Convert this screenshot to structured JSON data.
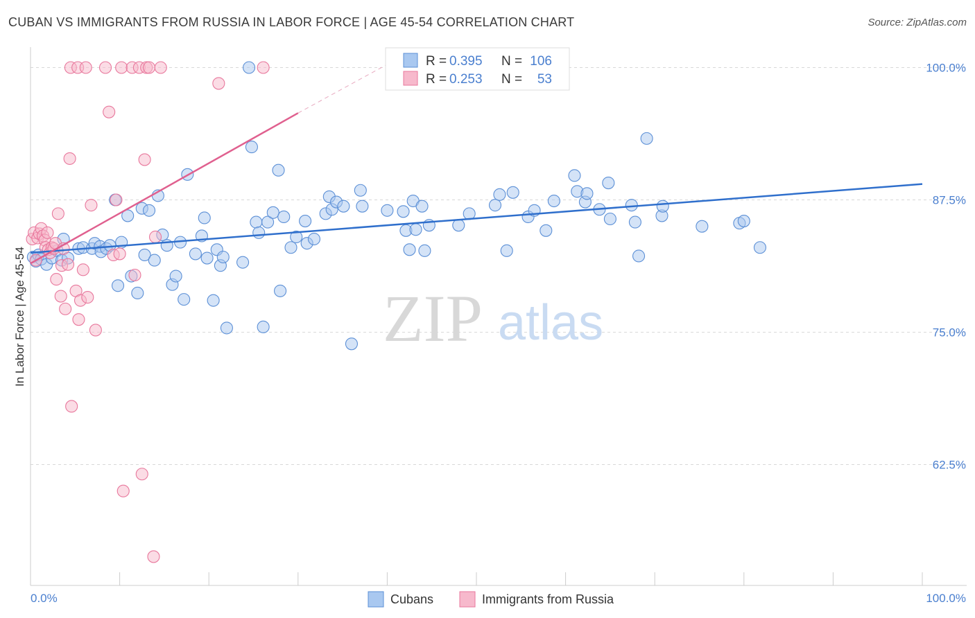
{
  "header": {
    "title": "CUBAN VS IMMIGRANTS FROM RUSSIA IN LABOR FORCE | AGE 45-54 CORRELATION CHART",
    "source": "Source: ZipAtlas.com"
  },
  "watermark": {
    "zip": "ZIP",
    "atlas": "atlas"
  },
  "colors": {
    "blue_fill": "#a9c8f0",
    "blue_stroke": "#5b8fd6",
    "blue_line": "#2f6fcc",
    "pink_fill": "#f7b9cc",
    "pink_stroke": "#e8779c",
    "pink_line": "#e0608f",
    "grid": "#d8d8d8",
    "axis_text": "#4a7fcf"
  },
  "legend": {
    "rows": [
      {
        "r_label": "R =",
        "r_value": "0.395",
        "n_label": "N =",
        "n_value": "106"
      },
      {
        "r_label": "R =",
        "r_value": "0.253",
        "n_label": "N =",
        "n_value": "53"
      }
    ]
  },
  "chart_data": {
    "type": "scatter",
    "title": "CUBAN VS IMMIGRANTS FROM RUSSIA IN LABOR FORCE | AGE 45-54 CORRELATION CHART",
    "xlabel": "",
    "ylabel": "In Labor Force | Age 45-54",
    "xlim": [
      0,
      100
    ],
    "ylim": [
      50,
      102
    ],
    "x_tick_labels": [
      "0.0%",
      "100.0%"
    ],
    "y_ticks": [
      62.5,
      75.0,
      87.5,
      100.0
    ],
    "y_tick_labels": [
      "62.5%",
      "75.0%",
      "87.5%",
      "100.0%"
    ],
    "grid": true,
    "legend_position": "bottom",
    "series": [
      {
        "name": "Cubans",
        "r": 0.395,
        "n": 106,
        "trend": {
          "x": [
            0,
            100
          ],
          "y": [
            82.5,
            89.0
          ]
        },
        "points": [
          [
            0.3,
            82.1
          ],
          [
            0.6,
            81.7
          ],
          [
            0.9,
            82.3
          ],
          [
            1.2,
            81.9
          ],
          [
            1.8,
            81.4
          ],
          [
            2.4,
            82.0
          ],
          [
            3.0,
            82.7
          ],
          [
            3.5,
            81.8
          ],
          [
            3.7,
            83.8
          ],
          [
            4.2,
            82.0
          ],
          [
            5.4,
            82.9
          ],
          [
            5.9,
            83.0
          ],
          [
            6.9,
            82.9
          ],
          [
            7.2,
            83.4
          ],
          [
            7.8,
            83.1
          ],
          [
            7.9,
            82.6
          ],
          [
            8.5,
            82.9
          ],
          [
            8.9,
            83.2
          ],
          [
            9.5,
            87.5
          ],
          [
            9.8,
            79.4
          ],
          [
            10.2,
            83.5
          ],
          [
            10.9,
            86.0
          ],
          [
            11.3,
            80.3
          ],
          [
            12.0,
            78.7
          ],
          [
            12.5,
            86.7
          ],
          [
            12.8,
            82.3
          ],
          [
            13.3,
            86.5
          ],
          [
            13.9,
            81.8
          ],
          [
            14.3,
            87.9
          ],
          [
            14.8,
            84.2
          ],
          [
            15.3,
            83.2
          ],
          [
            15.9,
            79.5
          ],
          [
            16.3,
            80.3
          ],
          [
            16.8,
            83.5
          ],
          [
            17.2,
            78.1
          ],
          [
            17.6,
            89.9
          ],
          [
            18.5,
            82.4
          ],
          [
            19.2,
            84.1
          ],
          [
            19.5,
            85.8
          ],
          [
            19.8,
            82.0
          ],
          [
            20.5,
            78.0
          ],
          [
            20.9,
            82.8
          ],
          [
            21.3,
            81.3
          ],
          [
            21.6,
            82.1
          ],
          [
            22.0,
            75.4
          ],
          [
            23.8,
            81.6
          ],
          [
            24.5,
            100.0
          ],
          [
            24.8,
            92.5
          ],
          [
            25.3,
            85.4
          ],
          [
            25.6,
            84.4
          ],
          [
            26.1,
            75.5
          ],
          [
            26.6,
            85.4
          ],
          [
            27.2,
            86.3
          ],
          [
            27.8,
            90.3
          ],
          [
            28.0,
            78.9
          ],
          [
            28.4,
            85.9
          ],
          [
            29.2,
            83.0
          ],
          [
            29.8,
            84.0
          ],
          [
            30.8,
            85.5
          ],
          [
            31.0,
            83.4
          ],
          [
            31.8,
            83.8
          ],
          [
            33.1,
            86.2
          ],
          [
            33.5,
            87.8
          ],
          [
            33.8,
            86.6
          ],
          [
            34.3,
            87.3
          ],
          [
            35.1,
            86.9
          ],
          [
            36.0,
            73.9
          ],
          [
            37.0,
            88.4
          ],
          [
            37.2,
            86.9
          ],
          [
            40.0,
            86.5
          ],
          [
            41.8,
            86.4
          ],
          [
            42.1,
            84.6
          ],
          [
            42.5,
            82.8
          ],
          [
            42.9,
            87.4
          ],
          [
            43.2,
            84.7
          ],
          [
            43.9,
            86.9
          ],
          [
            44.2,
            82.7
          ],
          [
            44.7,
            85.1
          ],
          [
            48.0,
            85.1
          ],
          [
            49.2,
            86.2
          ],
          [
            52.1,
            87.0
          ],
          [
            52.6,
            88.0
          ],
          [
            53.4,
            82.7
          ],
          [
            54.1,
            88.2
          ],
          [
            55.8,
            85.9
          ],
          [
            56.5,
            86.5
          ],
          [
            57.8,
            84.6
          ],
          [
            58.7,
            87.4
          ],
          [
            61.0,
            89.8
          ],
          [
            61.3,
            88.3
          ],
          [
            62.2,
            87.3
          ],
          [
            62.4,
            88.1
          ],
          [
            63.8,
            86.6
          ],
          [
            64.8,
            89.1
          ],
          [
            65.0,
            85.7
          ],
          [
            67.4,
            87.0
          ],
          [
            67.8,
            85.4
          ],
          [
            68.2,
            82.2
          ],
          [
            69.1,
            93.3
          ],
          [
            70.8,
            86.0
          ],
          [
            70.9,
            86.9
          ],
          [
            75.3,
            85.0
          ],
          [
            79.5,
            85.3
          ],
          [
            80.0,
            85.5
          ],
          [
            81.8,
            83.0
          ]
        ]
      },
      {
        "name": "Immigrants from Russia",
        "r": 0.253,
        "n": 53,
        "trend": {
          "x": [
            0,
            30
          ],
          "y": [
            81.5,
            95.7
          ]
        },
        "trend_dashed": {
          "x": [
            30,
            40
          ],
          "y": [
            95.7,
            100.3
          ]
        },
        "points": [
          [
            0.2,
            83.8
          ],
          [
            0.4,
            84.4
          ],
          [
            0.6,
            81.8
          ],
          [
            0.8,
            83.9
          ],
          [
            1.0,
            84.3
          ],
          [
            1.2,
            84.8
          ],
          [
            1.4,
            84.1
          ],
          [
            1.6,
            83.7
          ],
          [
            1.7,
            83.0
          ],
          [
            1.9,
            84.4
          ],
          [
            2.0,
            82.8
          ],
          [
            2.2,
            82.5
          ],
          [
            2.4,
            83.0
          ],
          [
            2.6,
            82.9
          ],
          [
            2.8,
            83.4
          ],
          [
            2.9,
            80.0
          ],
          [
            3.1,
            86.2
          ],
          [
            3.4,
            78.4
          ],
          [
            3.5,
            81.3
          ],
          [
            3.7,
            82.9
          ],
          [
            3.9,
            77.2
          ],
          [
            4.2,
            81.4
          ],
          [
            4.4,
            91.4
          ],
          [
            4.5,
            100.0
          ],
          [
            4.6,
            68.0
          ],
          [
            5.1,
            78.9
          ],
          [
            5.3,
            100.0
          ],
          [
            5.4,
            76.2
          ],
          [
            5.6,
            78.0
          ],
          [
            5.9,
            80.9
          ],
          [
            6.2,
            100.0
          ],
          [
            6.4,
            78.3
          ],
          [
            6.8,
            87.0
          ],
          [
            7.3,
            75.2
          ],
          [
            8.4,
            100.0
          ],
          [
            8.8,
            95.8
          ],
          [
            9.3,
            82.3
          ],
          [
            9.6,
            87.5
          ],
          [
            10.0,
            82.4
          ],
          [
            10.2,
            100.0
          ],
          [
            10.4,
            60.0
          ],
          [
            11.4,
            100.0
          ],
          [
            11.7,
            80.4
          ],
          [
            12.2,
            100.0
          ],
          [
            12.5,
            61.6
          ],
          [
            12.8,
            91.3
          ],
          [
            13.0,
            100.0
          ],
          [
            13.3,
            100.0
          ],
          [
            13.8,
            53.8
          ],
          [
            14.0,
            84.0
          ],
          [
            14.6,
            100.0
          ],
          [
            21.1,
            98.5
          ],
          [
            26.1,
            100.0
          ]
        ]
      }
    ]
  }
}
